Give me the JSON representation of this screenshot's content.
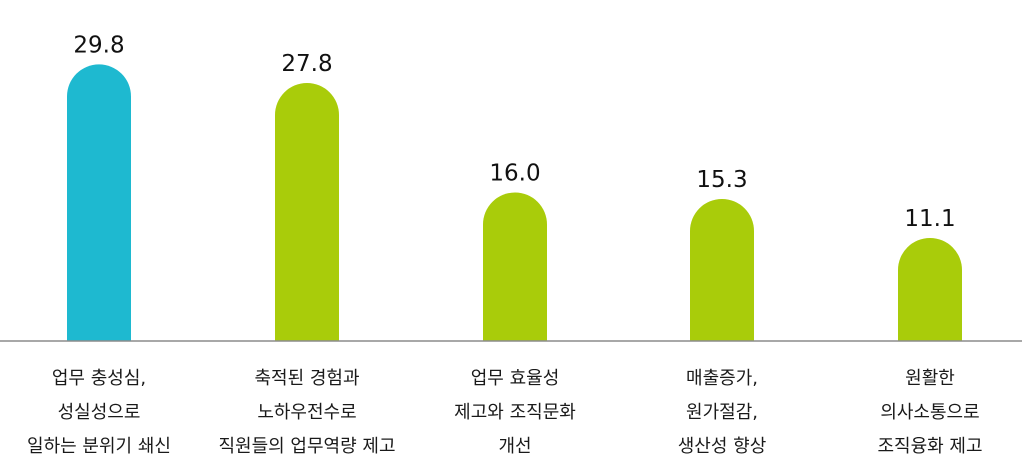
{
  "chart_data": {
    "type": "bar",
    "categories": [
      [
        "업무 충성심,",
        "성실성으로",
        "일하는 분위기 쇄신"
      ],
      [
        "축적된 경험과",
        "노하우전수로",
        "직원들의 업무역량 제고"
      ],
      [
        "업무 효율성",
        "제고와 조직문화",
        "개선"
      ],
      [
        "매출증가,",
        "원가절감,",
        "생산성 향상"
      ],
      [
        "원활한",
        "의사소통으로",
        "조직융화 제고"
      ]
    ],
    "values": [
      29.8,
      27.8,
      16.0,
      15.3,
      11.1
    ],
    "value_labels": [
      "29.8",
      "27.8",
      "16.0",
      "15.3",
      "11.1"
    ],
    "ylim": [
      0,
      32
    ],
    "grid": false,
    "legend": "none",
    "colors": {
      "highlight": "#1eb9d0",
      "default": "#a9cc0a",
      "baseline": "#8c8c8c"
    },
    "highlight_index": 0
  }
}
